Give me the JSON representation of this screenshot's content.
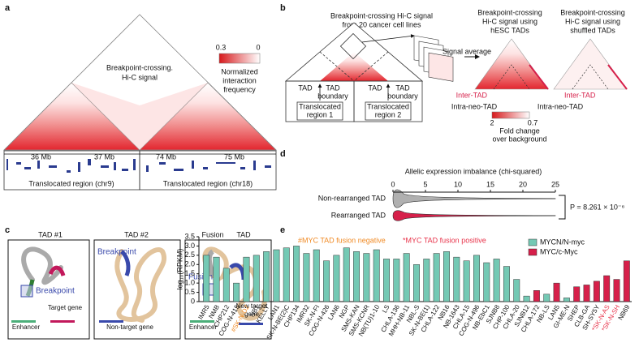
{
  "panel_labels": [
    "a",
    "b",
    "c",
    "d",
    "e"
  ],
  "panel_a": {
    "signal_label": [
      "Breakpoint-crossing.",
      "Hi-C signal"
    ],
    "colorbar_max": 0.3,
    "colorbar_min": 0,
    "colorbar_label": [
      "Normalized",
      "interaction",
      "frequency"
    ],
    "coordinates": [
      "36 Mb",
      "37 Mb",
      "74 Mb",
      "75 Mb"
    ],
    "regions": [
      "Translocated region (chr9)",
      "Translocated region (chr18)"
    ]
  },
  "panel_b": {
    "title": [
      "Breakpoint-crossing Hi-C signal",
      "from 20 cancer cell lines"
    ],
    "signal_average": "Signal average",
    "hesc_title": [
      "Breakpoint-crossing",
      "Hi-C signal using",
      "hESC TADs"
    ],
    "shuffled_title": [
      "Breakpoint-crossing",
      "Hi-C signal using",
      "shuffled TADs"
    ],
    "boundaries": [
      {
        "left": "TAD",
        "right": "TAD",
        "below": "boundary"
      },
      {
        "left": "TAD",
        "right": "TAD",
        "below": "boundary"
      }
    ],
    "regions": [
      [
        "Translocated",
        "region 1"
      ],
      [
        "Translocated",
        "region 2"
      ]
    ],
    "inter_tad": [
      "Inter-TAD",
      "Inter-TAD"
    ],
    "intra_neo_tad": [
      "Intra-neo-TAD",
      "Intra-neo-TAD"
    ],
    "colorbar_max": 2,
    "colorbar_min": 0.7,
    "colorbar_label": [
      "Fold change",
      "over background"
    ]
  },
  "panel_c": {
    "titles": [
      "TAD #1",
      "TAD #2"
    ],
    "fusion_title": [
      "Fusion",
      "TAD"
    ],
    "breakpoint": [
      "Breakpoint",
      "Breakpoint",
      "Fusion"
    ],
    "enhancer": [
      "Enhancer",
      "Enhancer"
    ],
    "target_gene": "Target gene",
    "non_target_gene": "Non-target gene",
    "new_target_gene": [
      "New target",
      "gene"
    ]
  },
  "chart_data": [
    {
      "type": "violin",
      "title": "Allelic expression imbalance (chi-squared)",
      "categories": [
        "Non-rearranged TAD",
        "Rearranged TAD"
      ],
      "colors": [
        "#b0b0b0",
        "#d6204a"
      ],
      "xlim": [
        0,
        25
      ],
      "xticks": [
        0,
        5,
        10,
        15,
        20,
        25
      ],
      "annotation": "P = 8.261 × 10⁻⁶"
    },
    {
      "type": "bar",
      "y_label": "log₁₀(RPKM)",
      "annotations": [
        "#MYC TAD fusion negative",
        "*MYC TAD fusion positive"
      ],
      "annotation_colors": [
        "#f08a24",
        "#e8334a"
      ],
      "categories": [
        "IMR5",
        "NMB",
        "CHP212",
        "COG-N-415",
        "#SK-N-DZ",
        "NB1",
        "KELLY",
        "LAN1",
        "SK-N-BE(2)C",
        "CHP134",
        "IMR32",
        "SK-N-FI",
        "COG-N-426",
        "LAN6",
        "NGP",
        "SMS-KAN",
        "SMS-KCNR",
        "NB(TU)1-10",
        "LS",
        "CHLA-136",
        "MHH-NB-11",
        "NBL-S",
        "SK-N-BE(1)",
        "CHLA-122",
        "NB16",
        "NB-1643",
        "CHLA-15",
        "COG-N-496",
        "NB-EbC1",
        "SJNB8",
        "CHP-100",
        "CHLA-20",
        "SJNB12",
        "CHLA-172",
        "NB-LS",
        "LAN5",
        "GI-ME-N",
        "SHEP",
        "CLB-GA",
        "SH-SY5Y",
        "*SK-N-AS",
        "*SK-N-SH",
        "NB69"
      ],
      "series": [
        {
          "name": "MYCN/N-myc",
          "color": "#74c9b4",
          "values": [
            2.5,
            2.4,
            1.8,
            1.0,
            2.4,
            2.5,
            2.7,
            2.8,
            2.9,
            3.0,
            2.6,
            2.8,
            2.2,
            2.5,
            2.9,
            2.7,
            2.6,
            2.8,
            2.3,
            2.3,
            2.6,
            2.0,
            2.3,
            2.6,
            2.7,
            2.4,
            2.2,
            2.5,
            2.1,
            2.3,
            1.9,
            1.2,
            0.3,
            null,
            0.4,
            null,
            0.2,
            null,
            null,
            null,
            null,
            null,
            null
          ]
        },
        {
          "name": "MYC/c-Myc",
          "color": "#d6204a",
          "values": [
            null,
            null,
            null,
            null,
            null,
            null,
            null,
            null,
            null,
            null,
            null,
            null,
            null,
            null,
            null,
            null,
            null,
            null,
            null,
            null,
            null,
            null,
            null,
            null,
            null,
            null,
            null,
            null,
            null,
            null,
            null,
            null,
            null,
            0.6,
            null,
            1.0,
            null,
            0.8,
            0.9,
            1.1,
            1.4,
            1.2,
            2.2
          ]
        }
      ],
      "label_colors": {
        "#": "#f08a24",
        "*": "#e8334a"
      },
      "ylim": [
        0,
        3.5
      ],
      "yticks": [
        0,
        0.5,
        {
          "value": 1,
          "label": "1.0"
        },
        1.5,
        {
          "value": 2,
          "label": "2.0"
        },
        2.5,
        {
          "value": 3,
          "label": "3.0"
        },
        3.5
      ]
    }
  ]
}
